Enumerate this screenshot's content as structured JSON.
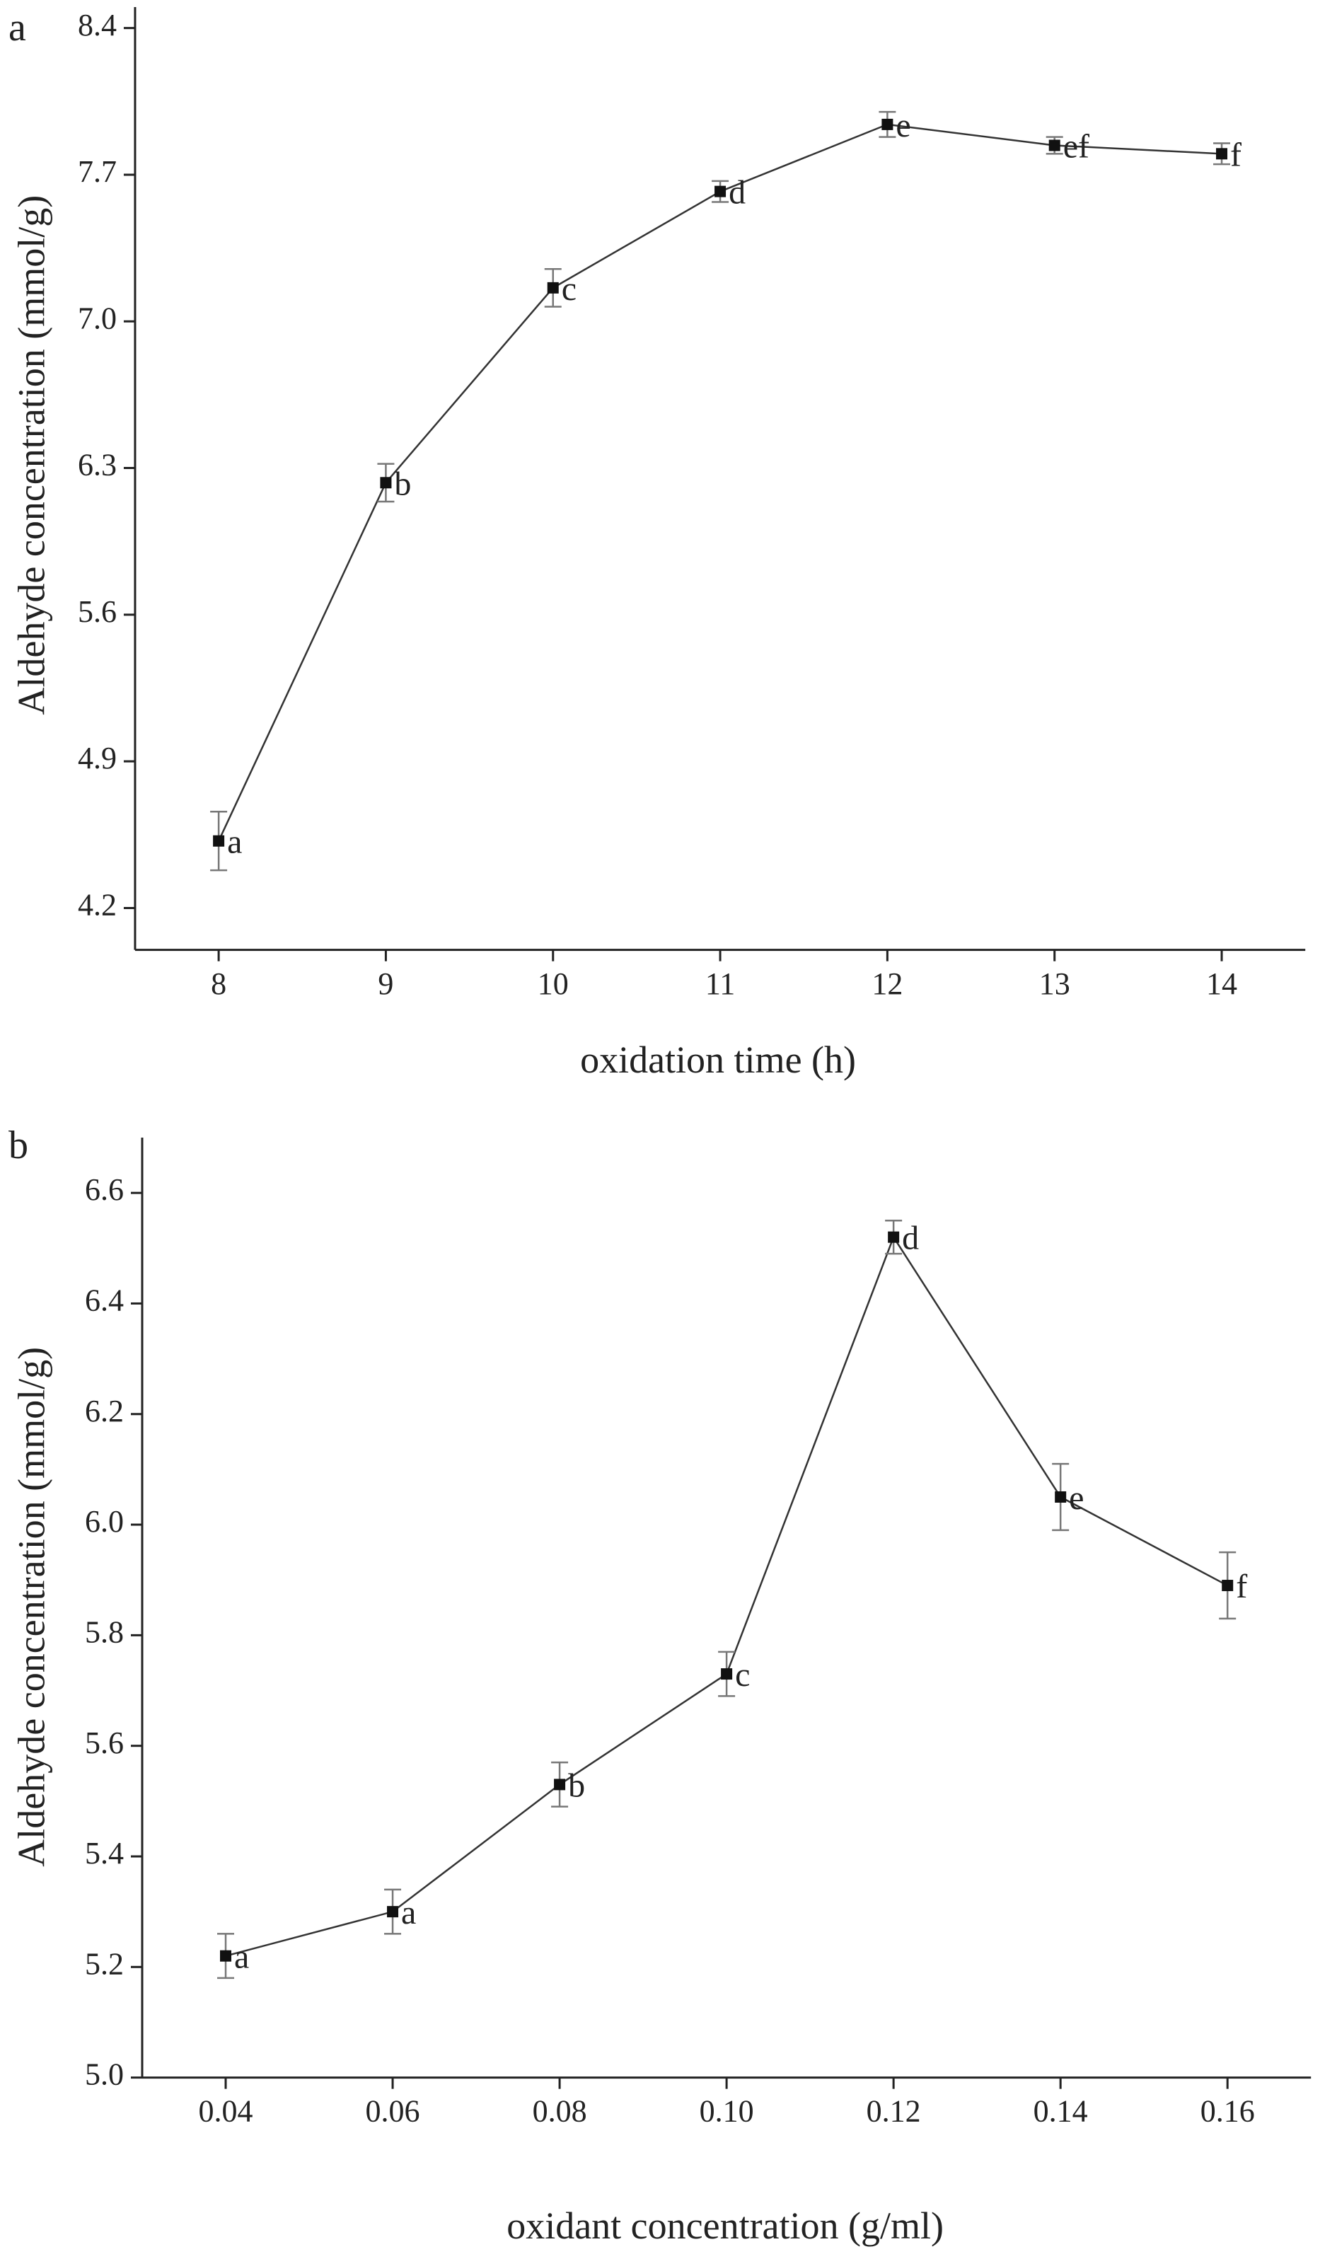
{
  "chart_data": [
    {
      "type": "line",
      "panel_label": "a",
      "x_label": "oxidation time (h)",
      "y_label": "Aldehyde concentration (mmol/g)",
      "x": [
        8,
        9,
        10,
        11,
        12,
        13,
        14
      ],
      "values": [
        4.52,
        6.23,
        7.16,
        7.62,
        7.94,
        7.84,
        7.8
      ],
      "errors": [
        0.14,
        0.09,
        0.09,
        0.05,
        0.06,
        0.04,
        0.05
      ],
      "point_labels": [
        "a",
        "b",
        "c",
        "d",
        "e",
        "ef",
        "f"
      ],
      "color": "#333333",
      "xlim": [
        7.5,
        14.5
      ],
      "xticks": [
        8,
        9,
        10,
        11,
        12,
        13,
        14
      ],
      "ylim": [
        4.0,
        8.5
      ],
      "yticks": [
        4.2,
        4.9,
        5.6,
        6.3,
        {
          "value": 7,
          "label": "7.0"
        },
        7.7,
        8.4
      ]
    },
    {
      "type": "line",
      "panel_label": "b",
      "x_label": "oxidant concentration (g/ml)",
      "y_label": "Aldehyde concentration (mmol/g)",
      "x": [
        0.04,
        0.06,
        0.08,
        0.1,
        0.12,
        0.14,
        0.16
      ],
      "values": [
        5.22,
        5.3,
        5.53,
        5.73,
        6.52,
        6.05,
        5.89
      ],
      "errors": [
        0.04,
        0.04,
        0.04,
        0.04,
        0.03,
        0.06,
        0.06
      ],
      "point_labels": [
        "a",
        "a",
        "b",
        "c",
        "d",
        "e",
        "f"
      ],
      "color": "#333333",
      "xlim": [
        0.03,
        0.17
      ],
      "xticks": [
        0.04,
        0.06,
        0.08,
        {
          "value": 0.1,
          "label": "0.10"
        },
        0.12,
        0.14,
        0.16
      ],
      "ylim": [
        5.0,
        6.7
      ],
      "yticks": [
        {
          "value": 5,
          "label": "5.0"
        },
        5.2,
        5.4,
        5.6,
        5.8,
        {
          "value": 6,
          "label": "6.0"
        },
        6.2,
        6.4,
        6.6
      ]
    }
  ]
}
